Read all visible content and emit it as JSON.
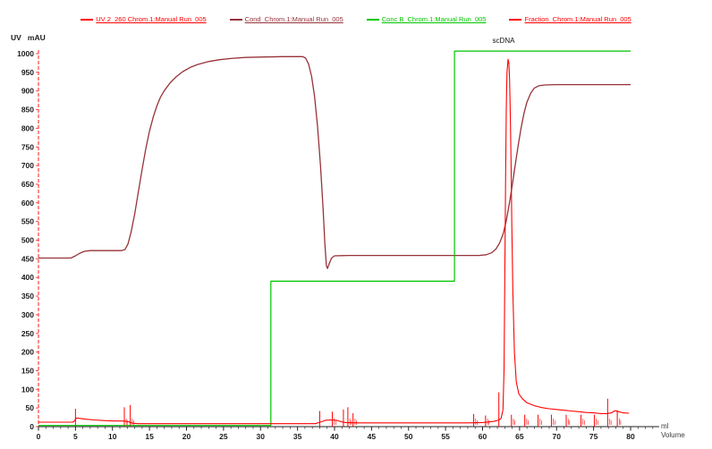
{
  "axes": {
    "y_title": "UV   mAU",
    "x_unit": "ml",
    "x_title": "Volume"
  },
  "annotation_scdna": "scDNA",
  "colors": {
    "uv": "#fe0000",
    "cond": "#97333a",
    "concb": "#00c400",
    "fraction": "#fe0000",
    "axis": "#222222",
    "y_axis_dash": "#ff4040"
  },
  "legend": [
    {
      "name": "uv",
      "label": "UV 2_260 Chrom.1:Manual Run  005",
      "color": "#fe0000"
    },
    {
      "name": "cond",
      "label": "Cond_Chrom.1:Manual Run  005",
      "color": "#97333a"
    },
    {
      "name": "concb",
      "label": "Conc B_Chrom.1:Manual Run  005",
      "color": "#00c400"
    },
    {
      "name": "fraction",
      "label": "Fraction_Chrom.1:Manual Run  005",
      "color": "#fe0000"
    }
  ],
  "chart_data": {
    "type": "line",
    "title": "",
    "xlabel": "Volume (ml)",
    "ylabel": "UV mAU",
    "xlim": [
      0,
      80
    ],
    "ylim": [
      0,
      1000
    ],
    "x_tick_major": 5,
    "x_tick_minor": 1,
    "y_tick_step": 50,
    "grid": false,
    "legend_position": "top",
    "annotations": [
      {
        "text": "scDNA",
        "x": 62.8,
        "y": 1030
      }
    ],
    "series": [
      {
        "name": "Cond_Chrom.1:Manual Run  005",
        "color": "#97333a",
        "points": [
          [
            0,
            452
          ],
          [
            4.4,
            452
          ],
          [
            5.0,
            458
          ],
          [
            5.6,
            465
          ],
          [
            6.2,
            470
          ],
          [
            7.0,
            472
          ],
          [
            9.0,
            472
          ],
          [
            11.2,
            472
          ],
          [
            11.7,
            475
          ],
          [
            12.1,
            490
          ],
          [
            12.5,
            520
          ],
          [
            13.0,
            570
          ],
          [
            13.5,
            630
          ],
          [
            14.0,
            690
          ],
          [
            14.5,
            745
          ],
          [
            15.0,
            792
          ],
          [
            15.5,
            830
          ],
          [
            16.0,
            860
          ],
          [
            16.5,
            884
          ],
          [
            17.0,
            901
          ],
          [
            17.8,
            922
          ],
          [
            18.6,
            938
          ],
          [
            19.5,
            952
          ],
          [
            20.5,
            963
          ],
          [
            21.5,
            971
          ],
          [
            23.0,
            979
          ],
          [
            24.5,
            984
          ],
          [
            26.0,
            987
          ],
          [
            28.0,
            990
          ],
          [
            30.0,
            991
          ],
          [
            33.0,
            992
          ],
          [
            35.7,
            992
          ],
          [
            36.1,
            988
          ],
          [
            36.5,
            972
          ],
          [
            36.9,
            940
          ],
          [
            37.3,
            885
          ],
          [
            37.7,
            805
          ],
          [
            38.1,
            700
          ],
          [
            38.45,
            585
          ],
          [
            38.7,
            490
          ],
          [
            38.9,
            432
          ],
          [
            39.05,
            424
          ],
          [
            39.3,
            438
          ],
          [
            39.6,
            452
          ],
          [
            40.0,
            458
          ],
          [
            42.0,
            459
          ],
          [
            46.0,
            459
          ],
          [
            52.0,
            459
          ],
          [
            57.0,
            459
          ],
          [
            59.5,
            459
          ],
          [
            60.5,
            461
          ],
          [
            61.2,
            466
          ],
          [
            61.8,
            476
          ],
          [
            62.3,
            492
          ],
          [
            62.8,
            518
          ],
          [
            63.2,
            552
          ],
          [
            63.6,
            596
          ],
          [
            64.0,
            646
          ],
          [
            64.4,
            700
          ],
          [
            64.8,
            752
          ],
          [
            65.2,
            800
          ],
          [
            65.6,
            840
          ],
          [
            66.0,
            870
          ],
          [
            66.5,
            894
          ],
          [
            67.0,
            908
          ],
          [
            67.6,
            914
          ],
          [
            68.4,
            916
          ],
          [
            70.0,
            917
          ],
          [
            73.0,
            917
          ],
          [
            76.0,
            917
          ],
          [
            80.0,
            917
          ]
        ]
      },
      {
        "name": "Conc B_Chrom.1:Manual Run  005",
        "color": "#00c400",
        "points": [
          [
            0,
            3
          ],
          [
            31.4,
            3
          ],
          [
            31.4,
            390
          ],
          [
            56.2,
            390
          ],
          [
            56.2,
            1007
          ],
          [
            80,
            1007
          ]
        ]
      },
      {
        "name": "UV 2_260 Chrom.1:Manual Run  005",
        "color": "#fe0000",
        "points": [
          [
            0,
            12
          ],
          [
            4.6,
            12
          ],
          [
            4.8,
            14
          ],
          [
            5.1,
            23
          ],
          [
            5.6,
            22
          ],
          [
            6.4,
            20
          ],
          [
            7.5,
            18
          ],
          [
            9.0,
            16
          ],
          [
            10.5,
            15
          ],
          [
            11.5,
            15
          ],
          [
            12.2,
            13
          ],
          [
            12.7,
            9
          ],
          [
            13.5,
            8
          ],
          [
            20.0,
            8
          ],
          [
            30.0,
            8
          ],
          [
            37.4,
            8
          ],
          [
            38.2,
            13
          ],
          [
            38.8,
            17
          ],
          [
            39.5,
            18
          ],
          [
            40.3,
            17
          ],
          [
            40.9,
            13
          ],
          [
            41.5,
            11
          ],
          [
            43.0,
            10
          ],
          [
            50.0,
            10
          ],
          [
            58.0,
            10
          ],
          [
            60.0,
            11
          ],
          [
            61.5,
            14
          ],
          [
            62.2,
            18
          ],
          [
            62.5,
            22
          ],
          [
            62.75,
            45
          ],
          [
            62.9,
            150
          ],
          [
            63.0,
            380
          ],
          [
            63.1,
            650
          ],
          [
            63.2,
            850
          ],
          [
            63.3,
            950
          ],
          [
            63.45,
            985
          ],
          [
            63.55,
            975
          ],
          [
            63.65,
            930
          ],
          [
            63.75,
            840
          ],
          [
            63.85,
            700
          ],
          [
            63.95,
            540
          ],
          [
            64.1,
            360
          ],
          [
            64.3,
            200
          ],
          [
            64.55,
            120
          ],
          [
            64.9,
            88
          ],
          [
            65.4,
            74
          ],
          [
            66.0,
            64
          ],
          [
            67.0,
            56
          ],
          [
            68.0,
            51
          ],
          [
            69.0,
            48
          ],
          [
            70.0,
            46
          ],
          [
            71.0,
            44
          ],
          [
            72.0,
            42
          ],
          [
            73.0,
            40
          ],
          [
            74.0,
            38
          ],
          [
            75.0,
            37
          ],
          [
            76.0,
            35
          ],
          [
            76.8,
            35
          ],
          [
            77.4,
            37
          ],
          [
            77.9,
            43
          ],
          [
            78.4,
            40
          ],
          [
            79.0,
            37
          ],
          [
            79.8,
            36
          ]
        ]
      }
    ],
    "fraction_marks": [
      {
        "x": 5.0,
        "h": 48,
        "text_smudge": false
      },
      {
        "x": 11.6,
        "h": 52,
        "text_smudge": true
      },
      {
        "x": 12.4,
        "h": 58,
        "text_smudge": true
      },
      {
        "x": 38.0,
        "h": 42,
        "text_smudge": false
      },
      {
        "x": 39.7,
        "h": 40,
        "text_smudge": true
      },
      {
        "x": 41.2,
        "h": 46,
        "text_smudge": false
      },
      {
        "x": 41.8,
        "h": 52,
        "text_smudge": true
      },
      {
        "x": 42.5,
        "h": 36,
        "text_smudge": true
      },
      {
        "x": 58.8,
        "h": 34,
        "text_smudge": true
      },
      {
        "x": 60.4,
        "h": 30,
        "text_smudge": true
      },
      {
        "x": 62.2,
        "h": 92,
        "text_smudge": false
      },
      {
        "x": 63.9,
        "h": 32,
        "text_smudge": true
      },
      {
        "x": 65.7,
        "h": 32,
        "text_smudge": true
      },
      {
        "x": 67.5,
        "h": 32,
        "text_smudge": true
      },
      {
        "x": 69.3,
        "h": 32,
        "text_smudge": true
      },
      {
        "x": 71.3,
        "h": 32,
        "text_smudge": true
      },
      {
        "x": 73.3,
        "h": 32,
        "text_smudge": true
      },
      {
        "x": 75.1,
        "h": 32,
        "text_smudge": true
      },
      {
        "x": 76.9,
        "h": 75,
        "text_smudge": true
      },
      {
        "x": 78.2,
        "h": 44,
        "text_smudge": true
      }
    ]
  }
}
